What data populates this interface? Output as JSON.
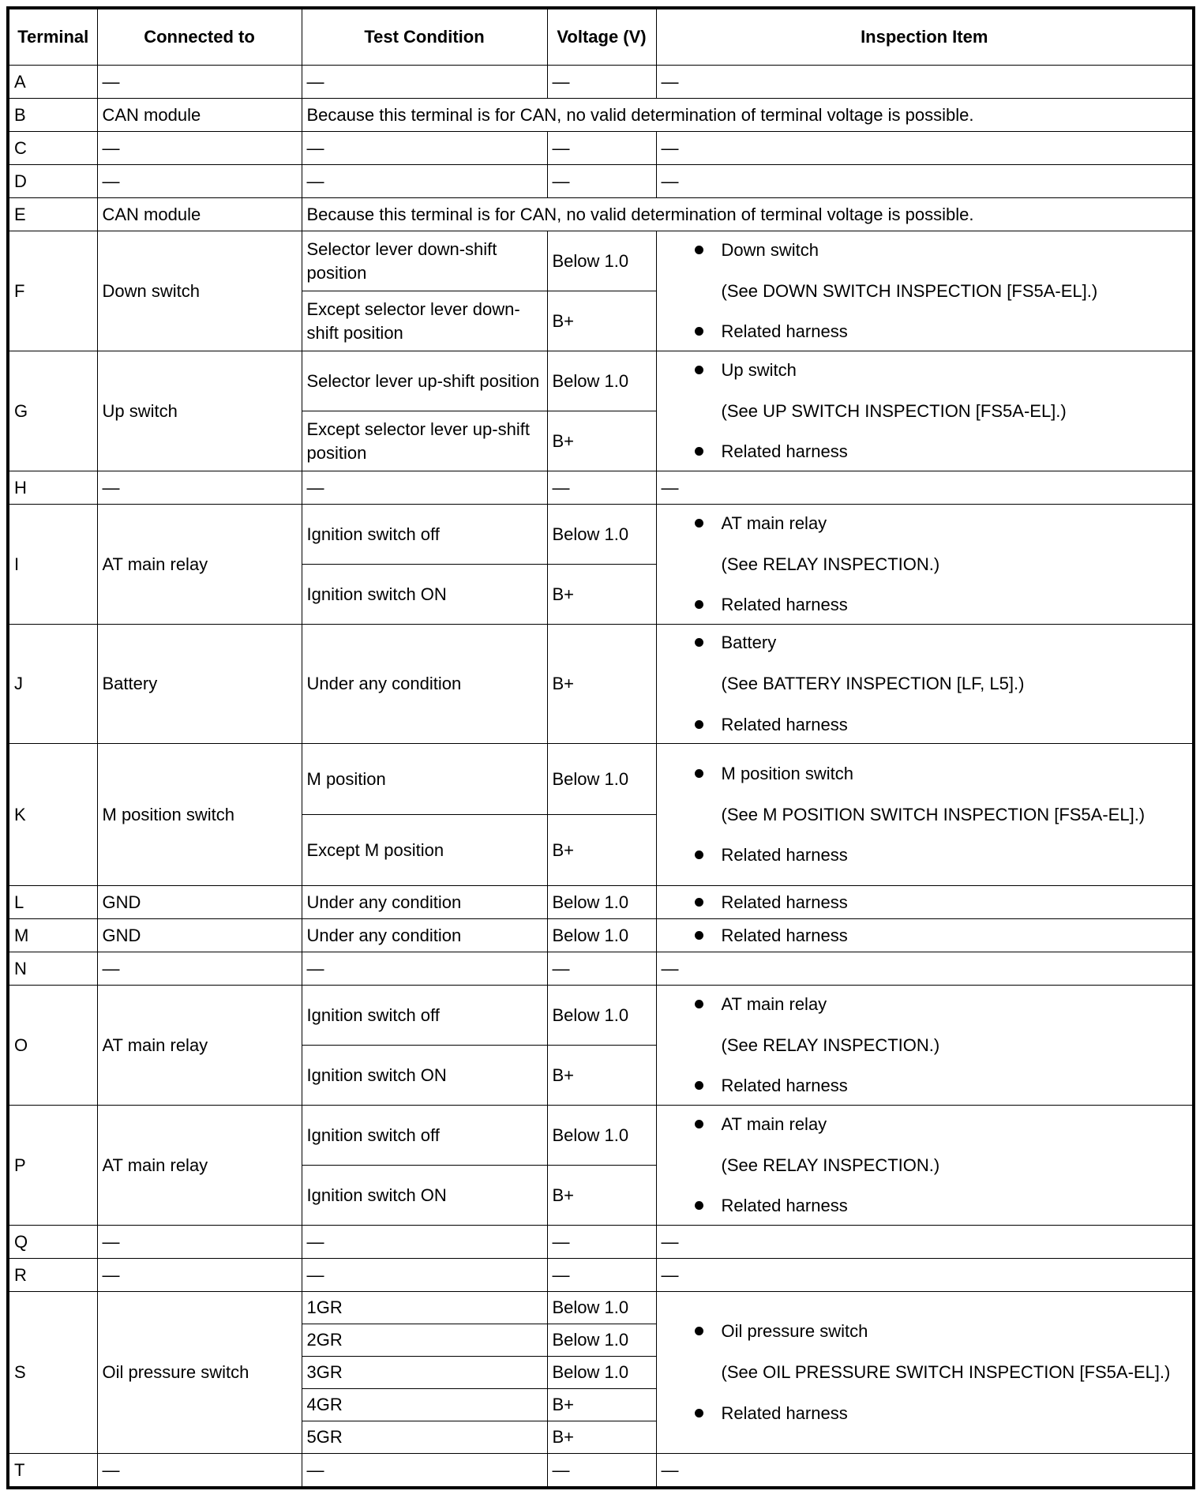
{
  "header": {
    "terminal": "Terminal",
    "connected_to": "Connected to",
    "test_condition": "Test Condition",
    "voltage": "Voltage (V)",
    "inspection": "Inspection Item"
  },
  "dash": "—",
  "can_note": "Because this terminal is for CAN, no valid determination of terminal voltage is possible.",
  "rows": [
    {
      "terminal": "A"
    },
    {
      "terminal": "B",
      "connected": "CAN module"
    },
    {
      "terminal": "C"
    },
    {
      "terminal": "D"
    },
    {
      "terminal": "E",
      "connected": "CAN module"
    },
    {
      "terminal": "F",
      "connected": "Down switch",
      "conditions": [
        {
          "condition": "Selector lever down-shift position",
          "voltage": "Below 1.0"
        },
        {
          "condition": "Except selector lever down-shift position",
          "voltage": "B+"
        }
      ],
      "inspection": {
        "item": "Down switch",
        "note": "(See DOWN SWITCH INSPECTION [FS5A-EL].)",
        "harness": "Related harness"
      }
    },
    {
      "terminal": "G",
      "connected": "Up switch",
      "conditions": [
        {
          "condition": "Selector lever up-shift position",
          "voltage": "Below 1.0"
        },
        {
          "condition": "Except selector lever up-shift position",
          "voltage": "B+"
        }
      ],
      "inspection": {
        "item": "Up switch",
        "note": "(See UP SWITCH INSPECTION [FS5A-EL].)",
        "harness": "Related harness"
      }
    },
    {
      "terminal": "H"
    },
    {
      "terminal": "I",
      "connected": "AT main relay",
      "conditions": [
        {
          "condition": "Ignition switch off",
          "voltage": "Below 1.0"
        },
        {
          "condition": "Ignition switch ON",
          "voltage": "B+"
        }
      ],
      "inspection": {
        "item": "AT main relay",
        "note": "(See RELAY INSPECTION.)",
        "harness": "Related harness"
      }
    },
    {
      "terminal": "J",
      "connected": "Battery",
      "conditions": [
        {
          "condition": "Under any condition",
          "voltage": "B+"
        }
      ],
      "inspection": {
        "item": "Battery",
        "note": "(See BATTERY INSPECTION [LF, L5].)",
        "harness": "Related harness"
      }
    },
    {
      "terminal": "K",
      "connected": "M position switch",
      "conditions": [
        {
          "condition": "M position",
          "voltage": "Below 1.0"
        },
        {
          "condition": "Except M position",
          "voltage": "B+"
        }
      ],
      "inspection": {
        "item": "M position switch",
        "note": "(See M POSITION SWITCH INSPECTION [FS5A-EL].)",
        "harness": "Related harness"
      }
    },
    {
      "terminal": "L",
      "connected": "GND",
      "conditions": [
        {
          "condition": "Under any condition",
          "voltage": "Below 1.0"
        }
      ],
      "inspection": {
        "harness": "Related harness"
      }
    },
    {
      "terminal": "M",
      "connected": "GND",
      "conditions": [
        {
          "condition": "Under any condition",
          "voltage": "Below 1.0"
        }
      ],
      "inspection": {
        "harness": "Related harness"
      }
    },
    {
      "terminal": "N"
    },
    {
      "terminal": "O",
      "connected": "AT main relay",
      "conditions": [
        {
          "condition": "Ignition switch off",
          "voltage": "Below 1.0"
        },
        {
          "condition": "Ignition switch ON",
          "voltage": "B+"
        }
      ],
      "inspection": {
        "item": "AT main relay",
        "note": "(See RELAY INSPECTION.)",
        "harness": "Related harness"
      }
    },
    {
      "terminal": "P",
      "connected": "AT main relay",
      "conditions": [
        {
          "condition": "Ignition switch off",
          "voltage": "Below 1.0"
        },
        {
          "condition": "Ignition switch ON",
          "voltage": "B+"
        }
      ],
      "inspection": {
        "item": "AT main relay",
        "note": "(See RELAY INSPECTION.)",
        "harness": "Related harness"
      }
    },
    {
      "terminal": "Q"
    },
    {
      "terminal": "R"
    },
    {
      "terminal": "S",
      "connected": "Oil pressure switch",
      "conditions": [
        {
          "condition": "1GR",
          "voltage": "Below 1.0"
        },
        {
          "condition": "2GR",
          "voltage": "Below 1.0"
        },
        {
          "condition": "3GR",
          "voltage": "Below 1.0"
        },
        {
          "condition": "4GR",
          "voltage": "B+"
        },
        {
          "condition": "5GR",
          "voltage": "B+"
        }
      ],
      "inspection": {
        "item": "Oil pressure switch",
        "note": "(See OIL PRESSURE SWITCH INSPECTION [FS5A-EL].)",
        "harness": "Related harness"
      }
    },
    {
      "terminal": "T"
    }
  ]
}
